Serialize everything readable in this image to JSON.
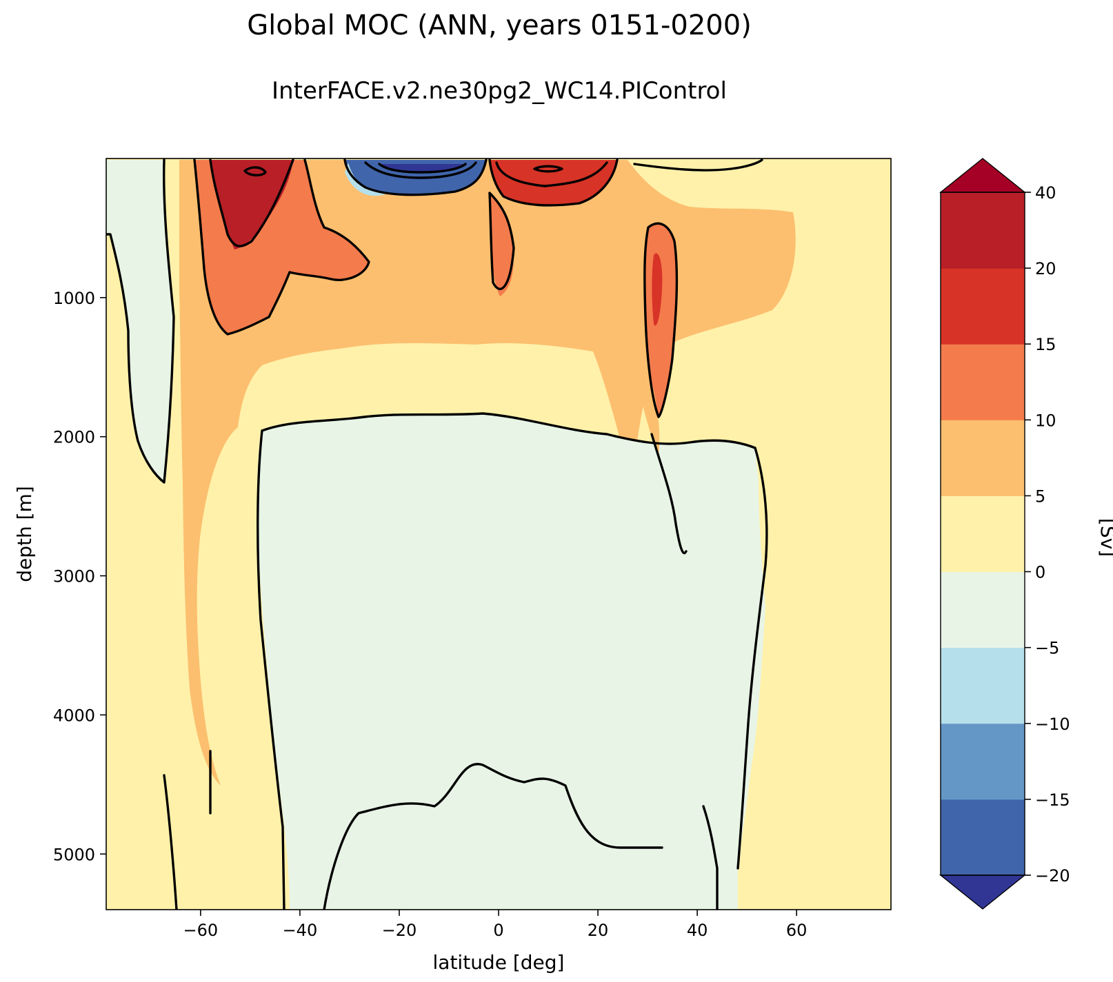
{
  "chart_data": {
    "type": "contourf",
    "title": "Global MOC (ANN, years 0151-0200)",
    "subtitle": "InterFACE.v2.ne30pg2_WC14.PIControl",
    "xlabel": "latitude [deg]",
    "ylabel": "depth [m]",
    "xlim": [
      -79,
      79
    ],
    "ylim": [
      5400,
      0
    ],
    "x_ticks": [
      -60,
      -40,
      -20,
      0,
      20,
      40,
      60
    ],
    "x_tick_labels": [
      "−60",
      "−40",
      "−20",
      "0",
      "20",
      "40",
      "60"
    ],
    "y_ticks": [
      1000,
      2000,
      3000,
      4000,
      5000
    ],
    "y_tick_labels": [
      "1000",
      "2000",
      "3000",
      "4000",
      "5000"
    ],
    "colorbar": {
      "label": "[Sv]",
      "levels": [
        -20,
        -15,
        -10,
        -5,
        0,
        5,
        10,
        15,
        20,
        40
      ],
      "level_labels": [
        "−20",
        "−15",
        "−10",
        "−5",
        "0",
        "5",
        "10",
        "15",
        "20",
        "40"
      ],
      "colors": [
        "#4065ab",
        "#6497c6",
        "#b5dfea",
        "#e8f4e6",
        "#fff1aa",
        "#fcbf6f",
        "#f47b4c",
        "#d73327",
        "#b81f27"
      ],
      "under_color": "#313695",
      "over_color": "#a50026",
      "extend": "both"
    },
    "regions": [
      {
        "name": "background",
        "level": "0 to 5",
        "color": "#fff1aa"
      },
      {
        "name": "deep-cell-interior",
        "level": "-5 to 0",
        "color": "#e8f4e6"
      },
      {
        "name": "southern-ocean-strip",
        "level": "-5 to 0",
        "color": "#e8f4e6"
      },
      {
        "name": "amoc-upper-band",
        "level": "5 to 10",
        "color": "#fcbf6f"
      },
      {
        "name": "southern-band",
        "level": "5 to 10",
        "color": "#fcbf6f"
      },
      {
        "name": "deacon-cell",
        "level": "10 to 15",
        "color": "#f47b4c"
      },
      {
        "name": "deacon-cell-core",
        "level": "20 to 40",
        "color": "#b81f27"
      },
      {
        "name": "southern-subtropical-cell",
        "level": "-20 to -5",
        "color": "#4065ab"
      },
      {
        "name": "northern-subtropical-cell",
        "level": "10 to 20",
        "color": "#d73327"
      },
      {
        "name": "northern-deep-plume",
        "level": "10 to 15",
        "color": "#f47b4c"
      }
    ],
    "contour_color": "#000000"
  }
}
